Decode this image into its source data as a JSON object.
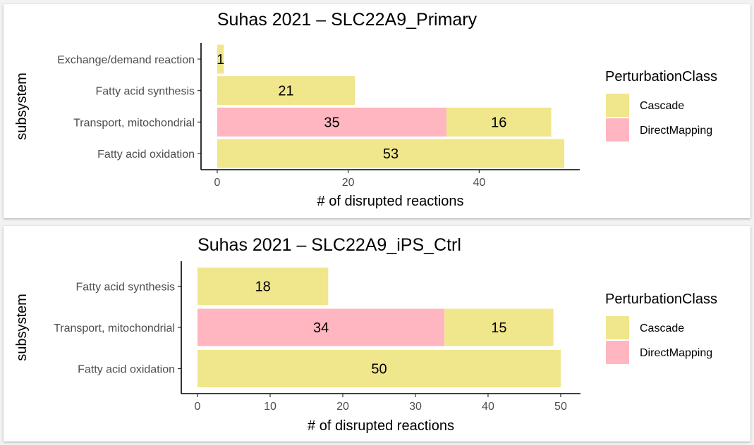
{
  "colors": {
    "Cascade": "#f0e68c",
    "DirectMapping": "#ffb6c1"
  },
  "chart_data": [
    {
      "type": "bar",
      "orientation": "horizontal",
      "stacked": true,
      "title": "Suhas 2021 – SLC22A9_Primary",
      "xlabel": "# of disrupted reactions",
      "ylabel": "subsystem",
      "categories": [
        "Exchange/demand reaction",
        "Fatty acid synthesis",
        "Transport, mitochondrial",
        "Fatty acid oxidation"
      ],
      "series": [
        {
          "name": "DirectMapping",
          "values": [
            0,
            0,
            35,
            0
          ]
        },
        {
          "name": "Cascade",
          "values": [
            1,
            21,
            16,
            53
          ]
        }
      ],
      "xlim": [
        0,
        55
      ],
      "xticks": [
        0,
        20,
        40
      ],
      "legend_title": "PerturbationClass",
      "legend_entries": [
        "Cascade",
        "DirectMapping"
      ],
      "legend_position": "right",
      "grid": false
    },
    {
      "type": "bar",
      "orientation": "horizontal",
      "stacked": true,
      "title": "Suhas 2021 – SLC22A9_iPS_Ctrl",
      "xlabel": "# of disrupted reactions",
      "ylabel": "subsystem",
      "categories": [
        "Fatty acid synthesis",
        "Transport, mitochondrial",
        "Fatty acid oxidation"
      ],
      "series": [
        {
          "name": "DirectMapping",
          "values": [
            0,
            34,
            0
          ]
        },
        {
          "name": "Cascade",
          "values": [
            18,
            15,
            50
          ]
        }
      ],
      "xlim": [
        0,
        52
      ],
      "xticks": [
        0,
        10,
        20,
        30,
        40,
        50
      ],
      "legend_title": "PerturbationClass",
      "legend_entries": [
        "Cascade",
        "DirectMapping"
      ],
      "legend_position": "right",
      "grid": false
    }
  ]
}
